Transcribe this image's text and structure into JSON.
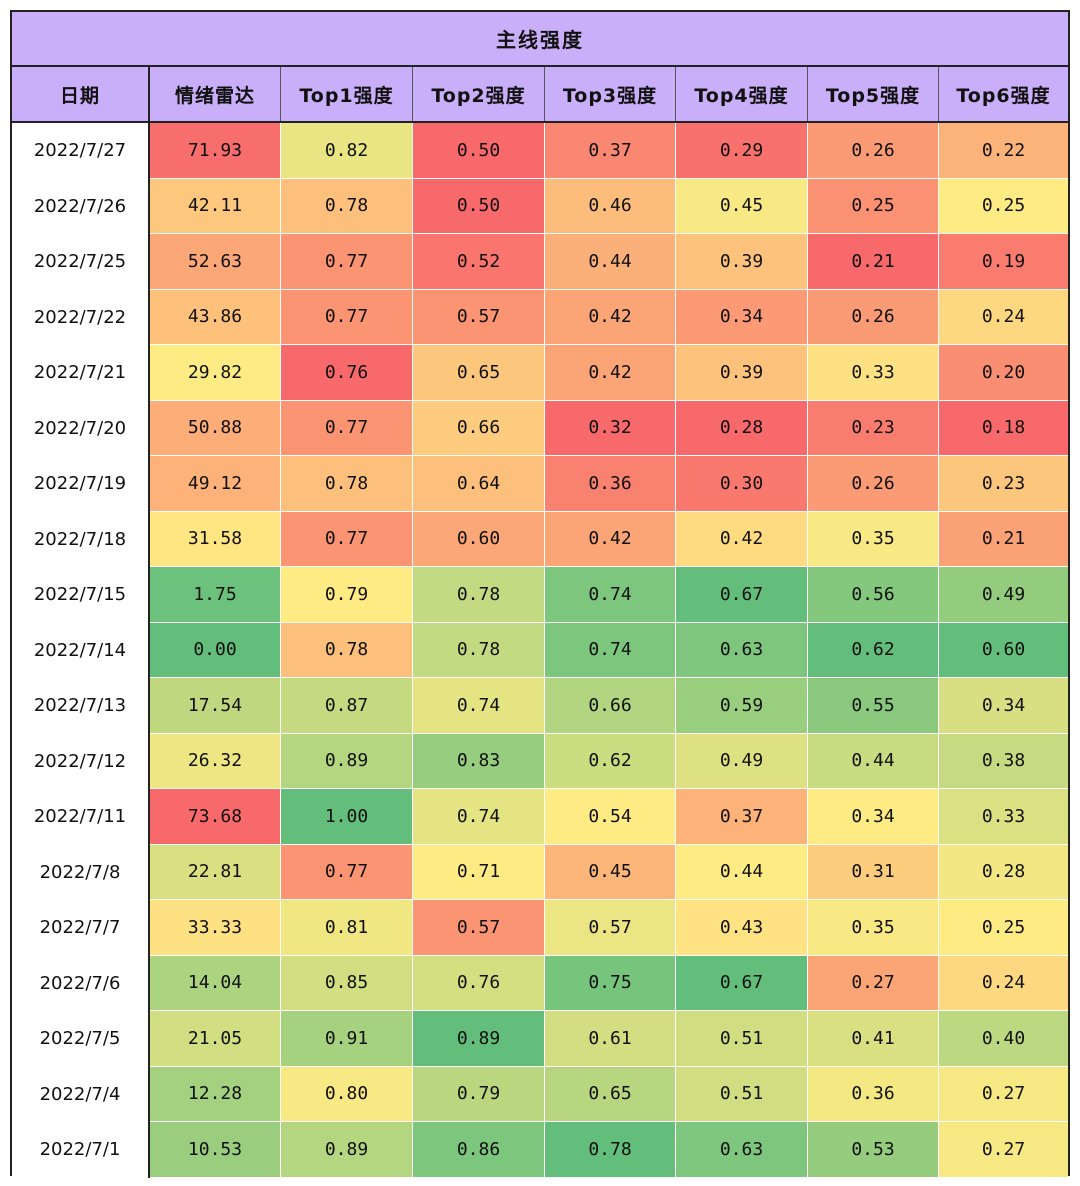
{
  "chart_data": {
    "type": "table",
    "title": "主线强度",
    "columns": [
      "日期",
      "情绪雷达",
      "Top1强度",
      "Top2强度",
      "Top3强度",
      "Top4强度",
      "Top5强度",
      "Top6强度"
    ],
    "rows": [
      [
        "2022/7/27",
        "71.93",
        "0.82",
        "0.50",
        "0.37",
        "0.29",
        "0.26",
        "0.22"
      ],
      [
        "2022/7/26",
        "42.11",
        "0.78",
        "0.50",
        "0.46",
        "0.45",
        "0.25",
        "0.25"
      ],
      [
        "2022/7/25",
        "52.63",
        "0.77",
        "0.52",
        "0.44",
        "0.39",
        "0.21",
        "0.19"
      ],
      [
        "2022/7/22",
        "43.86",
        "0.77",
        "0.57",
        "0.42",
        "0.34",
        "0.26",
        "0.24"
      ],
      [
        "2022/7/21",
        "29.82",
        "0.76",
        "0.65",
        "0.42",
        "0.39",
        "0.33",
        "0.20"
      ],
      [
        "2022/7/20",
        "50.88",
        "0.77",
        "0.66",
        "0.32",
        "0.28",
        "0.23",
        "0.18"
      ],
      [
        "2022/7/19",
        "49.12",
        "0.78",
        "0.64",
        "0.36",
        "0.30",
        "0.26",
        "0.23"
      ],
      [
        "2022/7/18",
        "31.58",
        "0.77",
        "0.60",
        "0.42",
        "0.42",
        "0.35",
        "0.21"
      ],
      [
        "2022/7/15",
        "1.75",
        "0.79",
        "0.78",
        "0.74",
        "0.67",
        "0.56",
        "0.49"
      ],
      [
        "2022/7/14",
        "0.00",
        "0.78",
        "0.78",
        "0.74",
        "0.63",
        "0.62",
        "0.60"
      ],
      [
        "2022/7/13",
        "17.54",
        "0.87",
        "0.74",
        "0.66",
        "0.59",
        "0.55",
        "0.34"
      ],
      [
        "2022/7/12",
        "26.32",
        "0.89",
        "0.83",
        "0.62",
        "0.49",
        "0.44",
        "0.38"
      ],
      [
        "2022/7/11",
        "73.68",
        "1.00",
        "0.74",
        "0.54",
        "0.37",
        "0.34",
        "0.33"
      ],
      [
        "2022/7/8",
        "22.81",
        "0.77",
        "0.71",
        "0.45",
        "0.44",
        "0.31",
        "0.28"
      ],
      [
        "2022/7/7",
        "33.33",
        "0.81",
        "0.57",
        "0.57",
        "0.43",
        "0.35",
        "0.25"
      ],
      [
        "2022/7/6",
        "14.04",
        "0.85",
        "0.76",
        "0.75",
        "0.67",
        "0.27",
        "0.24"
      ],
      [
        "2022/7/5",
        "21.05",
        "0.91",
        "0.89",
        "0.61",
        "0.51",
        "0.41",
        "0.40"
      ],
      [
        "2022/7/4",
        "12.28",
        "0.80",
        "0.79",
        "0.65",
        "0.51",
        "0.36",
        "0.27"
      ],
      [
        "2022/7/1",
        "10.53",
        "0.89",
        "0.86",
        "0.78",
        "0.63",
        "0.53",
        "0.27"
      ]
    ],
    "colors": {
      "header_bg": "#c9aff9",
      "scale_red": "#f8696b",
      "scale_yellow": "#ffeb84",
      "scale_green": "#63be7b"
    }
  }
}
